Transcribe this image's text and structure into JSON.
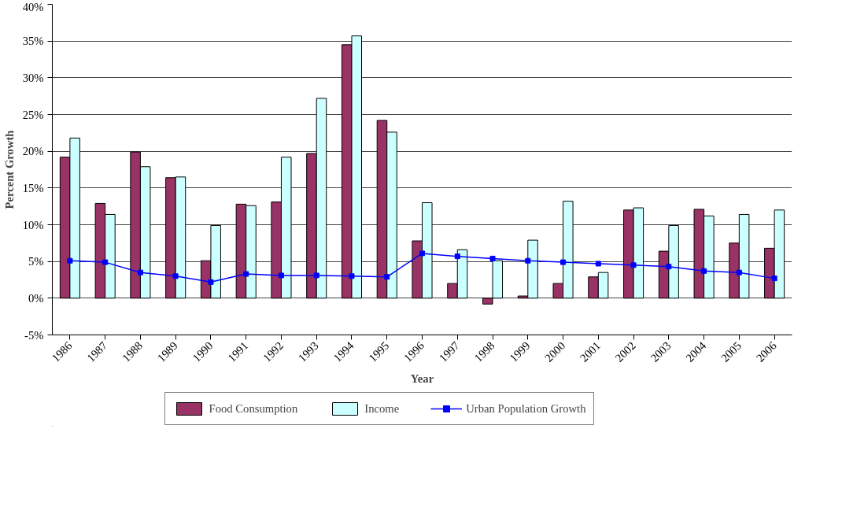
{
  "chart_data": {
    "type": "bar",
    "xlabel": "Year",
    "ylabel": "Percent Growth",
    "categories": [
      "1986",
      "1987",
      "1988",
      "1989",
      "1990",
      "1991",
      "1992",
      "1993",
      "1994",
      "1995",
      "1996",
      "1997",
      "1998",
      "1999",
      "2000",
      "2001",
      "2002",
      "2003",
      "2004",
      "2005",
      "2006"
    ],
    "series": [
      {
        "name": "Food Consumption",
        "color": "#993366",
        "values": [
          19.2,
          12.9,
          19.9,
          16.4,
          5.1,
          12.8,
          13.1,
          19.7,
          34.5,
          24.2,
          7.8,
          2.0,
          -0.8,
          0.3,
          2.0,
          2.9,
          12.0,
          6.4,
          12.1,
          7.5,
          6.8
        ]
      },
      {
        "name": "Income",
        "color": "#ccffff",
        "values": [
          21.8,
          11.4,
          17.9,
          16.5,
          9.9,
          12.6,
          19.2,
          27.2,
          35.7,
          22.6,
          13.0,
          6.6,
          5.1,
          7.9,
          13.2,
          3.5,
          12.3,
          9.9,
          11.2,
          11.4,
          12.0
        ]
      },
      {
        "name": "Urban Population Growth",
        "type": "line",
        "color": "#0000ff",
        "marker": "square",
        "values": [
          5.1,
          4.9,
          3.5,
          3.0,
          2.2,
          3.3,
          3.1,
          3.1,
          3.0,
          2.9,
          6.1,
          5.7,
          5.4,
          5.1,
          4.9,
          4.7,
          4.5,
          4.3,
          3.7,
          3.5,
          2.7
        ]
      }
    ],
    "ylim": [
      -5,
      40
    ],
    "yticks": [
      {
        "value": -5,
        "label": "-5%"
      },
      {
        "value": 0,
        "label": "0%"
      },
      {
        "value": 5,
        "label": "5%"
      },
      {
        "value": 10,
        "label": "10%"
      },
      {
        "value": 15,
        "label": "15%"
      },
      {
        "value": 20,
        "label": "20%"
      },
      {
        "value": 25,
        "label": "25%"
      },
      {
        "value": 30,
        "label": "30%"
      },
      {
        "value": 35,
        "label": "35%"
      },
      {
        "value": 40,
        "label": "40%"
      }
    ],
    "grid": "y",
    "legend": "bottom"
  }
}
